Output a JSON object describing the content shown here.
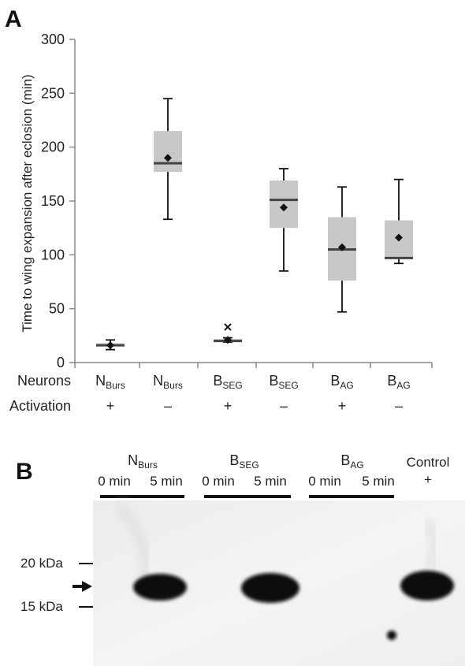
{
  "panels": {
    "a_letter": "A",
    "b_letter": "B"
  },
  "chart_data": {
    "type": "box",
    "title": "",
    "ylabel": "Time to wing expansion after eclosion (min)",
    "xlabel": "",
    "ylim": [
      0,
      300
    ],
    "yticks": [
      0,
      50,
      100,
      150,
      200,
      250,
      300
    ],
    "grid": false,
    "categories": [
      {
        "main": "N",
        "sub": "Burs",
        "activation": "+"
      },
      {
        "main": "N",
        "sub": "Burs",
        "activation": "–"
      },
      {
        "main": "B",
        "sub": "SEG",
        "activation": "+"
      },
      {
        "main": "B",
        "sub": "SEG",
        "activation": "–"
      },
      {
        "main": "B",
        "sub": "AG",
        "activation": "+"
      },
      {
        "main": "B",
        "sub": "AG",
        "activation": "–"
      }
    ],
    "boxes": [
      {
        "min": 12,
        "q1": 15,
        "median": 16,
        "q3": 18,
        "max": 21,
        "mean": 16
      },
      {
        "min": 133,
        "q1": 177,
        "median": 185,
        "q3": 215,
        "max": 245,
        "mean": 190
      },
      {
        "min": 19,
        "q1": 19,
        "median": 20,
        "q3": 22,
        "max": 23,
        "mean": 21,
        "outlier": 33
      },
      {
        "min": 85,
        "q1": 125,
        "median": 151,
        "q3": 169,
        "max": 180,
        "mean": 144
      },
      {
        "min": 47,
        "q1": 76,
        "median": 105,
        "q3": 135,
        "max": 163,
        "mean": 107
      },
      {
        "min": 92,
        "q1": 97,
        "median": 97,
        "q3": 132,
        "max": 170,
        "mean": 116
      }
    ],
    "row_labels": {
      "neurons": "Neurons",
      "activation": "Activation"
    },
    "colors": {
      "box_fill": "#c8c8c8",
      "median_line": "#444444",
      "whisker": "#111111"
    }
  },
  "blot": {
    "groups": [
      {
        "main": "N",
        "sub": "Burs"
      },
      {
        "main": "B",
        "sub": "SEG"
      },
      {
        "main": "B",
        "sub": "AG"
      }
    ],
    "lane_labels": [
      "0 min",
      "5 min",
      "0 min",
      "5 min",
      "0 min",
      "5 min"
    ],
    "control_label": "Control",
    "control_sign": "+",
    "markers": [
      "20 kDa",
      "15 kDa"
    ],
    "arrow": "➔"
  }
}
